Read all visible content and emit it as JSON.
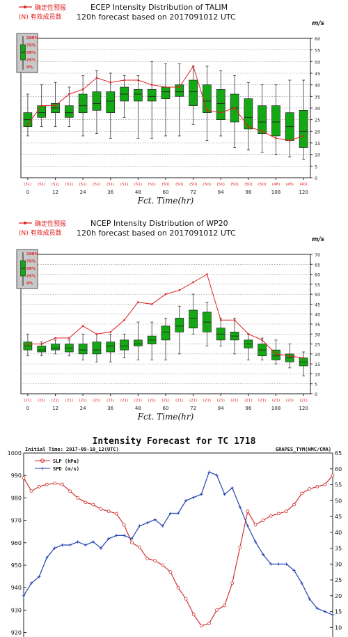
{
  "chart_data": [
    {
      "type": "box",
      "legend": {
        "line_label": "确定性预报",
        "n_label": "(N) 有效成员数",
        "box_labels": [
          "100%",
          "75%",
          "50%",
          "25%",
          "0%"
        ]
      },
      "title": "ECEP Intensity Distribution of TALIM",
      "subtitle": "120h forecast based on 2017091012 UTC",
      "ylabel": "m/s",
      "xlabel": "Fct. Time(hr)",
      "ylim": [
        0,
        60
      ],
      "y_ticks": [
        0,
        5,
        10,
        15,
        20,
        25,
        30,
        35,
        40,
        45,
        50,
        55,
        60
      ],
      "x_ticks": [
        0,
        12,
        24,
        36,
        48,
        60,
        72,
        84,
        96,
        108,
        120
      ],
      "x": [
        0,
        6,
        12,
        18,
        24,
        30,
        36,
        42,
        48,
        54,
        60,
        66,
        72,
        78,
        84,
        90,
        96,
        102,
        108,
        114,
        120
      ],
      "counts": [
        "(51)",
        "(51)",
        "(51)",
        "(51)",
        "(51)",
        "(51)",
        "(51)",
        "(51)",
        "(51)",
        "(51)",
        "(50)",
        "(50)",
        "(50)",
        "(50)",
        "(50)",
        "(50)",
        "(50)",
        "(50)",
        "(48)",
        "(45)",
        "(40)"
      ],
      "boxes": [
        {
          "min": 18,
          "q1": 22,
          "med": 25,
          "q3": 28,
          "max": 36
        },
        {
          "min": 22,
          "q1": 26,
          "med": 28,
          "q3": 31,
          "max": 40
        },
        {
          "min": 22,
          "q1": 28,
          "med": 30,
          "q3": 32,
          "max": 41
        },
        {
          "min": 22,
          "q1": 26,
          "med": 28,
          "q3": 31,
          "max": 39
        },
        {
          "min": 18,
          "q1": 28,
          "med": 31,
          "q3": 36,
          "max": 44
        },
        {
          "min": 19,
          "q1": 29,
          "med": 32,
          "q3": 37,
          "max": 46
        },
        {
          "min": 17,
          "q1": 28,
          "med": 33,
          "q3": 37,
          "max": 45
        },
        {
          "min": 26,
          "q1": 33,
          "med": 36,
          "q3": 39,
          "max": 44
        },
        {
          "min": 17,
          "q1": 33,
          "med": 36,
          "q3": 38,
          "max": 44
        },
        {
          "min": 17,
          "q1": 33,
          "med": 35,
          "q3": 38,
          "max": 50
        },
        {
          "min": 18,
          "q1": 34,
          "med": 37,
          "q3": 39,
          "max": 49
        },
        {
          "min": 18,
          "q1": 35,
          "med": 37,
          "q3": 40,
          "max": 49
        },
        {
          "min": 23,
          "q1": 31,
          "med": 37,
          "q3": 42,
          "max": 48
        },
        {
          "min": 16,
          "q1": 28,
          "med": 33,
          "q3": 40,
          "max": 48
        },
        {
          "min": 18,
          "q1": 25,
          "med": 32,
          "q3": 38,
          "max": 46
        },
        {
          "min": 13,
          "q1": 24,
          "med": 30,
          "q3": 36,
          "max": 44
        },
        {
          "min": 12,
          "q1": 21,
          "med": 26,
          "q3": 34,
          "max": 41
        },
        {
          "min": 11,
          "q1": 19,
          "med": 24,
          "q3": 31,
          "max": 40
        },
        {
          "min": 10,
          "q1": 18,
          "med": 24,
          "q3": 31,
          "max": 40
        },
        {
          "min": 9,
          "q1": 16,
          "med": 22,
          "q3": 28,
          "max": 42
        },
        {
          "min": 8,
          "q1": 13,
          "med": 20,
          "q3": 29,
          "max": 42
        }
      ],
      "deterministic": [
        23,
        31,
        31,
        36,
        38,
        43,
        41,
        42,
        42,
        40,
        39,
        39,
        48,
        29,
        28,
        30,
        22,
        20,
        17,
        16,
        18
      ]
    },
    {
      "type": "box",
      "legend": {
        "line_label": "确定性预报",
        "n_label": "(N) 有效成员数",
        "box_labels": [
          "100%",
          "75%",
          "50%",
          "25%",
          "0%"
        ]
      },
      "title": "NCEP Intensity Distribution of WP20",
      "subtitle": "120h forecast based on 2017091012 UTC",
      "ylabel": "m/s",
      "xlabel": "Fct. Time(hr)",
      "ylim": [
        0,
        70
      ],
      "y_ticks": [
        0,
        5,
        10,
        15,
        20,
        25,
        30,
        35,
        40,
        45,
        50,
        55,
        60,
        65,
        70
      ],
      "x_ticks": [
        0,
        12,
        24,
        36,
        48,
        60,
        72,
        84,
        96,
        108,
        120
      ],
      "x": [
        0,
        6,
        12,
        18,
        24,
        30,
        36,
        42,
        48,
        54,
        60,
        66,
        72,
        78,
        84,
        90,
        96,
        102,
        108,
        114,
        120
      ],
      "counts": [
        "(21)",
        "(21)",
        "(21)",
        "(21)",
        "(21)",
        "(21)",
        "(21)",
        "(21)",
        "(21)",
        "(21)",
        "(21)",
        "(21)",
        "(21)",
        "(21)",
        "(21)",
        "(21)",
        "(21)",
        "(21)",
        "(21)",
        "(21)",
        "(21)"
      ],
      "boxes": [
        {
          "min": 19,
          "q1": 22,
          "med": 24,
          "q3": 26,
          "max": 30
        },
        {
          "min": 19,
          "q1": 21,
          "med": 22,
          "q3": 24,
          "max": 26
        },
        {
          "min": 20,
          "q1": 22,
          "med": 23,
          "q3": 25,
          "max": 27
        },
        {
          "min": 19,
          "q1": 21,
          "med": 23,
          "q3": 25,
          "max": 27
        },
        {
          "min": 17,
          "q1": 20,
          "med": 22,
          "q3": 25,
          "max": 30
        },
        {
          "min": 16,
          "q1": 20,
          "med": 22,
          "q3": 26,
          "max": 30
        },
        {
          "min": 16,
          "q1": 21,
          "med": 24,
          "q3": 26,
          "max": 30
        },
        {
          "min": 18,
          "q1": 22,
          "med": 24,
          "q3": 27,
          "max": 30
        },
        {
          "min": 17,
          "q1": 24,
          "med": 25,
          "q3": 27,
          "max": 36
        },
        {
          "min": 17,
          "q1": 25,
          "med": 27,
          "q3": 29,
          "max": 36
        },
        {
          "min": 17,
          "q1": 27,
          "med": 31,
          "q3": 34,
          "max": 38
        },
        {
          "min": 20,
          "q1": 31,
          "med": 34,
          "q3": 38,
          "max": 44
        },
        {
          "min": 30,
          "q1": 33,
          "med": 38,
          "q3": 42,
          "max": 50
        },
        {
          "min": 24,
          "q1": 31,
          "med": 36,
          "q3": 41,
          "max": 46
        },
        {
          "min": 24,
          "q1": 27,
          "med": 30,
          "q3": 33,
          "max": 38
        },
        {
          "min": 20,
          "q1": 27,
          "med": 29,
          "q3": 31,
          "max": 38
        },
        {
          "min": 17,
          "q1": 23,
          "med": 25,
          "q3": 27,
          "max": 30
        },
        {
          "min": 17,
          "q1": 19,
          "med": 22,
          "q3": 25,
          "max": 28
        },
        {
          "min": 15,
          "q1": 17,
          "med": 19,
          "q3": 22,
          "max": 27
        },
        {
          "min": 13,
          "q1": 16,
          "med": 18,
          "q3": 20,
          "max": 25
        },
        {
          "min": 9,
          "q1": 14,
          "med": 16,
          "q3": 18,
          "max": 21
        }
      ],
      "deterministic": [
        25,
        25,
        28,
        28,
        34,
        30,
        31,
        37,
        46,
        45,
        50,
        52,
        56,
        60,
        37,
        37,
        30,
        27,
        20,
        19,
        18
      ]
    },
    {
      "type": "line",
      "title": "Intensity Forecast for TC 1718",
      "top_left_label": "Initial Time: 2017-09-10_12(UTC)",
      "top_right_label": "GRAPES_TYM(NMC/CMA)",
      "colors": {
        "slp": "#d03030",
        "spd": "#2040b0"
      },
      "y_left_ticks": [
        920,
        930,
        940,
        950,
        960,
        970,
        980,
        990,
        1000
      ],
      "y_right_ticks": [
        10,
        15,
        20,
        25,
        30,
        35,
        40,
        45,
        50,
        55,
        60,
        65
      ],
      "ylim_left": [
        918,
        1000
      ],
      "ylim_right": [
        7,
        65
      ],
      "series": [
        {
          "name": "SLP (hPa)",
          "axis": "left",
          "values": [
            989,
            983,
            985,
            986,
            986.5,
            986,
            983,
            980,
            978,
            977,
            975,
            974,
            973,
            968,
            960,
            958,
            953,
            952,
            950,
            947,
            940,
            935,
            928,
            923,
            924,
            930,
            932,
            942,
            958,
            974,
            968,
            970,
            972,
            973,
            974,
            977,
            982,
            984,
            985,
            986,
            990
          ]
        },
        {
          "name": "SPD (m/s)",
          "axis": "right",
          "values": [
            20,
            24,
            26,
            32,
            35,
            36,
            36,
            37,
            36,
            37,
            35,
            38,
            39,
            39,
            38,
            42,
            43,
            44,
            42,
            46,
            46,
            50,
            51,
            52,
            59,
            58,
            52,
            54,
            48,
            42,
            37,
            33,
            30,
            30,
            30,
            28,
            24,
            19,
            16,
            15,
            14
          ]
        }
      ]
    }
  ]
}
